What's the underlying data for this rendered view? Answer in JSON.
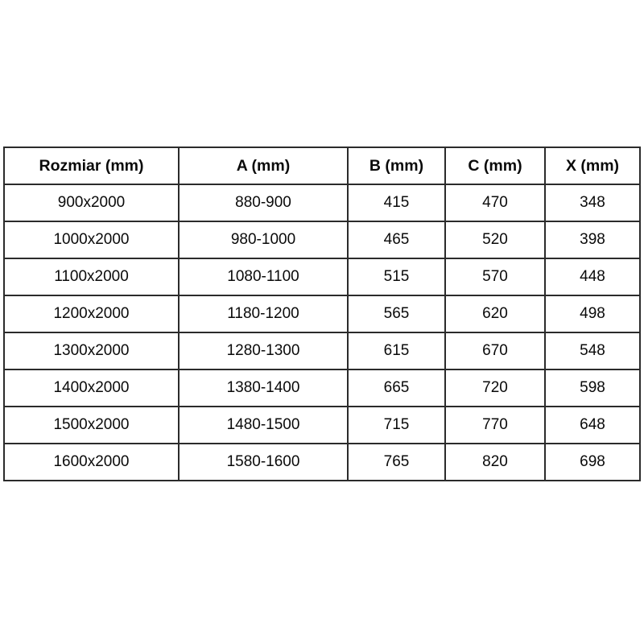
{
  "style": {
    "background_color": "#ffffff",
    "border_color": "#2b2b2b",
    "text_color": "#0a0a0a"
  },
  "chart_data": {
    "type": "table",
    "columns": [
      "Rozmiar (mm)",
      "A (mm)",
      "B (mm)",
      "C (mm)",
      "X (mm)"
    ],
    "rows": [
      [
        "900x2000",
        "880-900",
        "415",
        "470",
        "348"
      ],
      [
        "1000x2000",
        "980-1000",
        "465",
        "520",
        "398"
      ],
      [
        "1100x2000",
        "1080-1100",
        "515",
        "570",
        "448"
      ],
      [
        "1200x2000",
        "1180-1200",
        "565",
        "620",
        "498"
      ],
      [
        "1300x2000",
        "1280-1300",
        "615",
        "670",
        "548"
      ],
      [
        "1400x2000",
        "1380-1400",
        "665",
        "720",
        "598"
      ],
      [
        "1500x2000",
        "1480-1500",
        "715",
        "770",
        "648"
      ],
      [
        "1600x2000",
        "1580-1600",
        "765",
        "820",
        "698"
      ]
    ]
  }
}
